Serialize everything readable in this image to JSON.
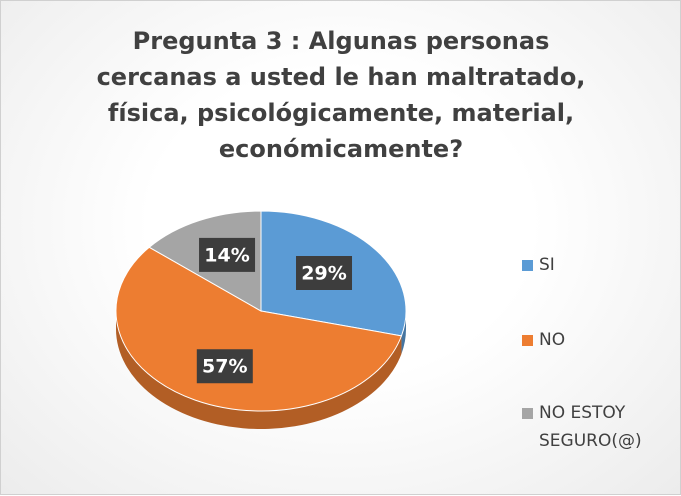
{
  "chart_data": {
    "type": "pie",
    "title": "Pregunta 3 : Algunas personas cercanas a usted le han maltratado, física, psicológicamente, material, económicamente?",
    "categories": [
      "SI",
      "NO",
      "NO ESTOY SEGURO(@)"
    ],
    "values": [
      29,
      57,
      14
    ],
    "value_labels": [
      "29%",
      "57%",
      "14%"
    ],
    "colors": [
      "#5b9bd5",
      "#ed7d31",
      "#a5a5a5"
    ],
    "legend": "right"
  }
}
